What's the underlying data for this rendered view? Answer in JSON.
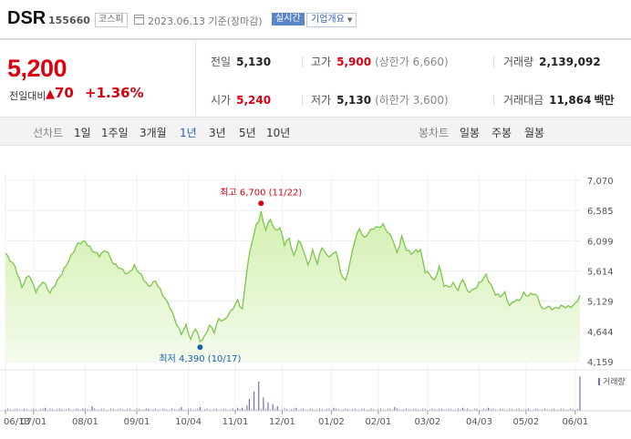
{
  "header": {
    "name": "DSR",
    "code": "155660",
    "market": "코스피",
    "calendar_icon": "calendar-icon",
    "date": "2023.06.13 기준(장마감)",
    "realtime": "실시간",
    "company_info": "기업개요",
    "company_caret": "▼"
  },
  "price": {
    "current": "5,200",
    "change_label": "전일대비",
    "change_arrow": "▲",
    "change": "70",
    "change_pct": "+1.36%"
  },
  "stats": {
    "prev_label": "전일",
    "prev": "5,130",
    "high_label": "고가",
    "high": "5,900",
    "upper_limit": "(상한가 6,660)",
    "volume_label": "거래량",
    "volume": "2,139,092",
    "open_label": "시가",
    "open": "5,240",
    "low_label": "저가",
    "low": "5,130",
    "lower_limit": "(하한가 3,600)",
    "amount_label": "거래대금",
    "amount": "11,864",
    "amount_unit": "백만"
  },
  "periods": {
    "line_label": "선차트",
    "line_items": [
      "1일",
      "1주일",
      "3개월",
      "1년",
      "3년",
      "5년",
      "10년"
    ],
    "active": "1년",
    "candle_label": "봉차트",
    "candle_items": [
      "일봉",
      "주봉",
      "월봉"
    ]
  },
  "colors": {
    "up": "#d9000f",
    "down": "#1a5fb4",
    "area_fill": "#d3f0b0",
    "line": "#7cc74a",
    "active_period": "#2e5fb5"
  },
  "chart_data": {
    "type": "area",
    "y_ticks": [
      "7,070",
      "6,585",
      "6,099",
      "5,614",
      "5,129",
      "4,644",
      "4,159"
    ],
    "ylim": [
      4159,
      7070
    ],
    "x_ticks": [
      "06/13",
      "07/01",
      "08/01",
      "09/01",
      "10/04",
      "11/01",
      "12/01",
      "01/02",
      "02/01",
      "03/02",
      "04/03",
      "05/02",
      "06/01"
    ],
    "x_tick_index": [
      0,
      12,
      34,
      56,
      78,
      98,
      118,
      139,
      159,
      180,
      202,
      222,
      243
    ],
    "n_points": 246,
    "anchors": [
      [
        0,
        5900
      ],
      [
        4,
        5700
      ],
      [
        7,
        5350
      ],
      [
        10,
        5550
      ],
      [
        13,
        5300
      ],
      [
        16,
        5450
      ],
      [
        19,
        5250
      ],
      [
        22,
        5450
      ],
      [
        25,
        5650
      ],
      [
        28,
        5850
      ],
      [
        31,
        6050
      ],
      [
        34,
        6100
      ],
      [
        37,
        5950
      ],
      [
        40,
        5850
      ],
      [
        43,
        5950
      ],
      [
        46,
        5750
      ],
      [
        49,
        5650
      ],
      [
        52,
        5550
      ],
      [
        55,
        5700
      ],
      [
        58,
        5550
      ],
      [
        61,
        5350
      ],
      [
        64,
        5450
      ],
      [
        67,
        5250
      ],
      [
        70,
        5050
      ],
      [
        73,
        4750
      ],
      [
        75,
        4600
      ],
      [
        77,
        4750
      ],
      [
        79,
        4520
      ],
      [
        81,
        4700
      ],
      [
        83,
        4480
      ],
      [
        85,
        4550
      ],
      [
        87,
        4750
      ],
      [
        89,
        4650
      ],
      [
        91,
        4850
      ],
      [
        93,
        4800
      ],
      [
        96,
        4950
      ],
      [
        99,
        5150
      ],
      [
        101,
        5000
      ],
      [
        103,
        5650
      ],
      [
        105,
        6050
      ],
      [
        107,
        6350
      ],
      [
        109,
        6500
      ],
      [
        111,
        6300
      ],
      [
        113,
        6450
      ],
      [
        115,
        6250
      ],
      [
        117,
        6300
      ],
      [
        119,
        6050
      ],
      [
        121,
        6150
      ],
      [
        123,
        5850
      ],
      [
        125,
        6100
      ],
      [
        127,
        5950
      ],
      [
        129,
        5700
      ],
      [
        131,
        5950
      ],
      [
        133,
        5750
      ],
      [
        135,
        6000
      ],
      [
        137,
        5850
      ],
      [
        139,
        5850
      ],
      [
        141,
        5950
      ],
      [
        143,
        5600
      ],
      [
        145,
        5450
      ],
      [
        147,
        5750
      ],
      [
        149,
        6100
      ],
      [
        151,
        6300
      ],
      [
        153,
        6150
      ],
      [
        155,
        6250
      ],
      [
        157,
        6300
      ],
      [
        159,
        6300
      ],
      [
        161,
        6350
      ],
      [
        163,
        6250
      ],
      [
        165,
        6150
      ],
      [
        167,
        5900
      ],
      [
        169,
        6150
      ],
      [
        171,
        5950
      ],
      [
        173,
        5900
      ],
      [
        175,
        5950
      ],
      [
        177,
        5950
      ],
      [
        179,
        5600
      ],
      [
        181,
        5550
      ],
      [
        183,
        5450
      ],
      [
        185,
        5700
      ],
      [
        187,
        5400
      ],
      [
        189,
        5350
      ],
      [
        191,
        5400
      ],
      [
        193,
        5300
      ],
      [
        195,
        5500
      ],
      [
        197,
        5300
      ],
      [
        199,
        5300
      ],
      [
        201,
        5350
      ],
      [
        203,
        5450
      ],
      [
        205,
        5550
      ],
      [
        207,
        5400
      ],
      [
        209,
        5250
      ],
      [
        211,
        5200
      ],
      [
        213,
        5250
      ],
      [
        215,
        5050
      ],
      [
        217,
        5150
      ],
      [
        219,
        5150
      ],
      [
        221,
        5250
      ],
      [
        223,
        5200
      ],
      [
        225,
        5250
      ],
      [
        227,
        5200
      ],
      [
        229,
        5000
      ],
      [
        231,
        5050
      ],
      [
        233,
        5000
      ],
      [
        235,
        5000
      ],
      [
        237,
        5050
      ],
      [
        239,
        5050
      ],
      [
        241,
        5050
      ],
      [
        243,
        5080
      ],
      [
        245,
        5200
      ]
    ],
    "high_label": "최고 6,700 (11/22)",
    "high_index": 109,
    "high_value": 6700,
    "low_label": "최저 4,390 (10/17)",
    "low_index": 83,
    "low_value": 4390,
    "volume_legend": "거래량",
    "volume_spikes": [
      [
        17,
        0.08
      ],
      [
        33,
        0.06
      ],
      [
        37,
        0.12
      ],
      [
        61,
        0.05
      ],
      [
        75,
        0.1
      ],
      [
        83,
        0.1
      ],
      [
        99,
        0.08
      ],
      [
        101,
        0.08
      ],
      [
        103,
        0.14
      ],
      [
        104,
        0.32
      ],
      [
        106,
        0.52
      ],
      [
        108,
        0.78
      ],
      [
        110,
        0.36
      ],
      [
        112,
        0.22
      ],
      [
        114,
        0.18
      ],
      [
        116,
        0.12
      ],
      [
        124,
        0.08
      ],
      [
        140,
        0.08
      ],
      [
        166,
        0.1
      ],
      [
        195,
        0.08
      ],
      [
        206,
        0.08
      ],
      [
        245,
        0.92
      ]
    ]
  }
}
